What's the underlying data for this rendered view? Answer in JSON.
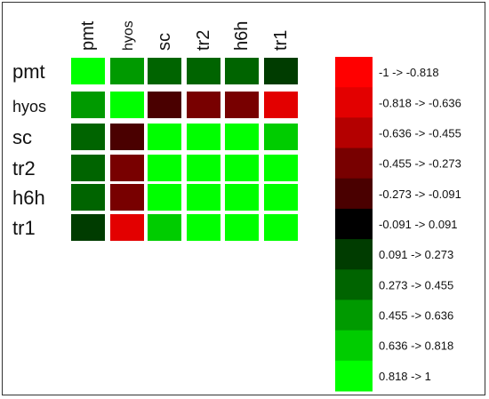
{
  "chart_data": {
    "type": "heatmap",
    "rows": [
      "pmt",
      "hyos",
      "sc",
      "tr2",
      "h6h",
      "tr1"
    ],
    "columns": [
      "pmt",
      "hyos",
      "sc",
      "tr2",
      "h6h",
      "tr1"
    ],
    "values": [
      [
        1.0,
        0.55,
        0.35,
        0.35,
        0.35,
        0.15
      ],
      [
        0.55,
        1.0,
        -0.2,
        -0.35,
        -0.3,
        -0.7
      ],
      [
        0.35,
        -0.2,
        1.0,
        1.0,
        1.0,
        0.75
      ],
      [
        0.35,
        -0.35,
        1.0,
        1.0,
        1.0,
        1.0
      ],
      [
        0.35,
        -0.3,
        1.0,
        1.0,
        1.0,
        1.0
      ],
      [
        0.15,
        -0.7,
        0.75,
        1.0,
        1.0,
        1.0
      ]
    ],
    "value_range": [
      -1,
      1
    ],
    "legend_position": "right",
    "legend": [
      {
        "label": "-1 -> -0.818",
        "color": "#ff0000"
      },
      {
        "label": "-0.818 -> -0.636",
        "color": "#e30000"
      },
      {
        "label": "-0.636 -> -0.455",
        "color": "#b40000"
      },
      {
        "label": "-0.455 -> -0.273",
        "color": "#780000"
      },
      {
        "label": "-0.273 -> -0.091",
        "color": "#4a0000"
      },
      {
        "label": "-0.091 -> 0.091",
        "color": "#000000"
      },
      {
        "label": "0.091 -> 0.273",
        "color": "#003c00"
      },
      {
        "label": "0.273 -> 0.455",
        "color": "#006400"
      },
      {
        "label": "0.455 -> 0.636",
        "color": "#009a00"
      },
      {
        "label": "0.636 -> 0.818",
        "color": "#00cc00"
      },
      {
        "label": "0.818 -> 1",
        "color": "#00ff00"
      }
    ]
  }
}
